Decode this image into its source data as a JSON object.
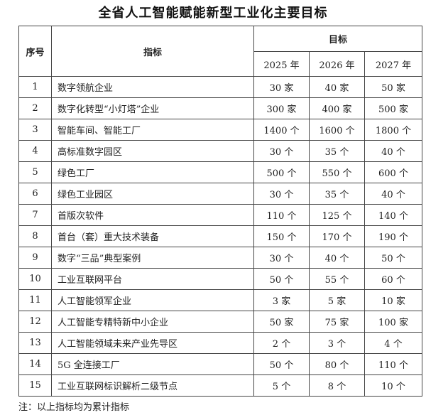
{
  "title": "全省人工智能赋能新型工业化主要目标",
  "headers": {
    "seq": "序号",
    "indicator": "指标",
    "target": "目标",
    "years": [
      "2025 年",
      "2026 年",
      "2027 年"
    ]
  },
  "rows": [
    {
      "seq": "1",
      "name": "数字领航企业",
      "v": [
        "30 家",
        "40 家",
        "50 家"
      ]
    },
    {
      "seq": "2",
      "name": "数字化转型“小灯塔”企业",
      "v": [
        "300 家",
        "400 家",
        "500 家"
      ]
    },
    {
      "seq": "3",
      "name": "智能车间、智能工厂",
      "v": [
        "1400 个",
        "1600 个",
        "1800 个"
      ]
    },
    {
      "seq": "4",
      "name": "高标准数字园区",
      "v": [
        "30 个",
        "35 个",
        "40 个"
      ]
    },
    {
      "seq": "5",
      "name": "绿色工厂",
      "v": [
        "500 个",
        "550 个",
        "600 个"
      ]
    },
    {
      "seq": "6",
      "name": "绿色工业园区",
      "v": [
        "30 个",
        "35 个",
        "40 个"
      ]
    },
    {
      "seq": "7",
      "name": "首版次软件",
      "v": [
        "110 个",
        "125 个",
        "140 个"
      ]
    },
    {
      "seq": "8",
      "name": "首台（套）重大技术装备",
      "v": [
        "150 个",
        "170 个",
        "190 个"
      ]
    },
    {
      "seq": "9",
      "name": "数字“三品”典型案例",
      "v": [
        "30 个",
        "40 个",
        "50 个"
      ]
    },
    {
      "seq": "10",
      "name": "工业互联网平台",
      "v": [
        "50 个",
        "55 个",
        "60 个"
      ]
    },
    {
      "seq": "11",
      "name": "人工智能领军企业",
      "v": [
        "3 家",
        "5 家",
        "10 家"
      ]
    },
    {
      "seq": "12",
      "name": "人工智能专精特新中小企业",
      "v": [
        "50 家",
        "75 家",
        "100 家"
      ]
    },
    {
      "seq": "13",
      "name": "人工智能领域未来产业先导区",
      "v": [
        "2 个",
        "3 个",
        "4 个"
      ]
    },
    {
      "seq": "14",
      "name": "5G 全连接工厂",
      "v": [
        "50 个",
        "80 个",
        "110 个"
      ]
    },
    {
      "seq": "15",
      "name": "工业互联网标识解析二级节点",
      "v": [
        "5 个",
        "8 个",
        "10 个"
      ]
    }
  ],
  "note": "注：以上指标均为累计指标"
}
